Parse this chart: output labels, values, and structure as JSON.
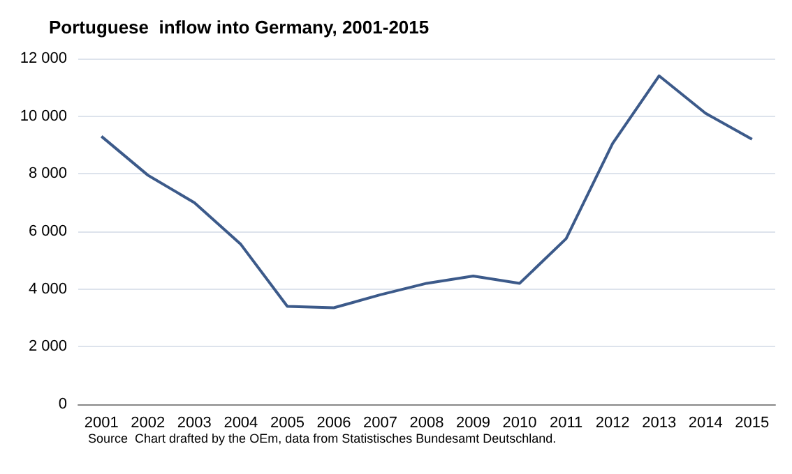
{
  "chart_data": {
    "type": "line",
    "title": "Portuguese  inflow into Germany, 2001-2015",
    "categories": [
      "2001",
      "2002",
      "2003",
      "2004",
      "2005",
      "2006",
      "2007",
      "2008",
      "2009",
      "2010",
      "2011",
      "2012",
      "2013",
      "2014",
      "2015"
    ],
    "series": [
      {
        "color": "#3c5a8a",
        "values": [
          9300,
          7950,
          7000,
          5550,
          3400,
          3350,
          3800,
          4200,
          4450,
          4200,
          5750,
          9050,
          11400,
          10100,
          9200
        ]
      }
    ],
    "ylim": [
      0,
      12000
    ],
    "yticks": [
      {
        "value": 0,
        "label": "0"
      },
      {
        "value": 2000,
        "label": "2 000"
      },
      {
        "value": 4000,
        "label": "4 000"
      },
      {
        "value": 6000,
        "label": "6 000"
      },
      {
        "value": 8000,
        "label": "8 000"
      },
      {
        "value": 10000,
        "label": "10 000"
      },
      {
        "value": 12000,
        "label": "12 000"
      }
    ],
    "grid": "y",
    "marker": "none",
    "line_style": "solid",
    "annotations": [
      "Source  Chart drafted by the OEm, data from Statistisches Bundesamt Deutschland."
    ]
  }
}
